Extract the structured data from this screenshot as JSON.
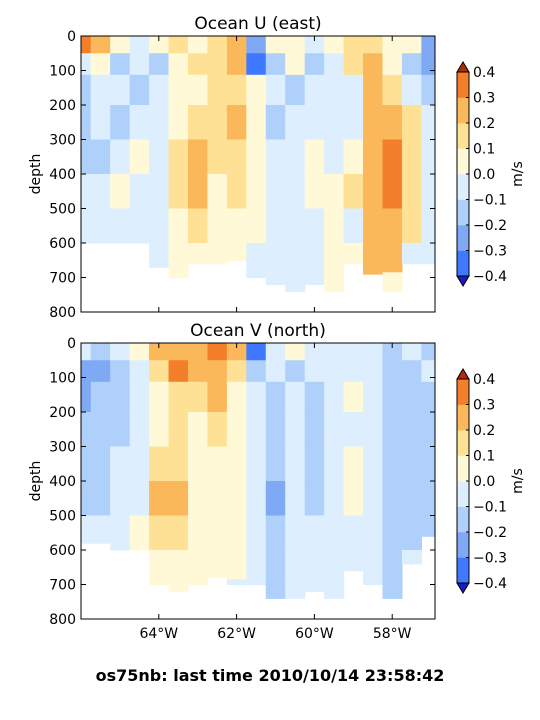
{
  "footer_text": "os75nb: last time 2010/10/14 23:58:42",
  "palette": {
    "levels": [
      -0.4,
      -0.3,
      -0.2,
      -0.1,
      0.0,
      0.1,
      0.2,
      0.3,
      0.4
    ],
    "bins": [
      "#1a3cff",
      "#3f79ff",
      "#7fa8f5",
      "#aed0fb",
      "#ddefff",
      "#fff9d8",
      "#ffe196",
      "#fbb85a",
      "#f47f2a",
      "#e6500d"
    ],
    "over": "#b22a06",
    "under": "#1a1ac8"
  },
  "chart_data": [
    {
      "type": "heatmap",
      "title": "Ocean U (east)",
      "ylabel": "depth",
      "xlabel": "",
      "xlim": [
        -66.0,
        -56.9
      ],
      "ylim": [
        800,
        0
      ],
      "yticks": [
        0,
        100,
        200,
        300,
        400,
        500,
        600,
        700,
        800
      ],
      "xticks": [
        -64,
        -62,
        -60,
        -58
      ],
      "xtick_labels": [
        "64°W",
        "62°W",
        "60°W",
        "58°W"
      ],
      "show_xtick_labels": false,
      "colorbar": {
        "label": "m/s",
        "ticks": [
          -0.4,
          -0.3,
          -0.2,
          -0.1,
          0.0,
          0.1,
          0.2,
          0.3,
          0.4
        ],
        "tick_labels": [
          "−0.4",
          "−0.3",
          "−0.2",
          "−0.1",
          "0.0",
          "0.1",
          "0.2",
          "0.3",
          "0.4"
        ]
      },
      "lon": [
        -66.0,
        -65.5,
        -65.0,
        -64.5,
        -64.0,
        -63.5,
        -63.0,
        -62.5,
        -62.0,
        -61.5,
        -61.0,
        -60.5,
        -60.0,
        -59.5,
        -59.0,
        -58.5,
        -58.0,
        -57.5,
        -57.0
      ],
      "depth_max": [
        600,
        600,
        600,
        600,
        670,
        700,
        660,
        660,
        650,
        700,
        720,
        740,
        720,
        740,
        660,
        690,
        740,
        660,
        660
      ],
      "depth": [
        25,
        75,
        150,
        250,
        350,
        450,
        550,
        650,
        720
      ],
      "values": [
        [
          0.35,
          0.2,
          0.05,
          -0.05,
          0.05,
          0.1,
          0.05,
          0.15,
          0.25,
          -0.3,
          0.05,
          0.05,
          -0.05,
          0.05,
          0.15,
          0.15,
          0.05,
          0.05,
          -0.3
        ],
        [
          -0.05,
          0.05,
          -0.15,
          -0.05,
          -0.15,
          0.05,
          0.1,
          0.15,
          0.2,
          -0.35,
          -0.15,
          0.05,
          -0.15,
          -0.1,
          0.15,
          0.2,
          0.05,
          -0.15,
          -0.25
        ],
        [
          -0.15,
          -0.05,
          -0.05,
          -0.15,
          -0.05,
          0.05,
          0.05,
          0.15,
          0.15,
          0.05,
          -0.05,
          -0.15,
          -0.05,
          -0.05,
          -0.05,
          0.2,
          0.15,
          -0.05,
          -0.15
        ],
        [
          -0.15,
          -0.05,
          -0.15,
          -0.05,
          -0.05,
          0.05,
          0.15,
          0.15,
          0.2,
          0.05,
          -0.15,
          -0.05,
          -0.05,
          -0.05,
          -0.05,
          0.25,
          0.25,
          0.15,
          -0.05
        ],
        [
          -0.15,
          -0.15,
          -0.05,
          0.05,
          -0.05,
          0.15,
          0.2,
          0.1,
          0.15,
          0.05,
          -0.05,
          -0.05,
          0.05,
          -0.05,
          0.05,
          0.25,
          0.3,
          0.15,
          -0.05
        ],
        [
          -0.05,
          -0.05,
          0.05,
          -0.05,
          -0.05,
          0.15,
          0.2,
          0.05,
          0.15,
          0.05,
          -0.05,
          -0.05,
          0.05,
          0.05,
          0.15,
          0.25,
          0.3,
          0.15,
          -0.05
        ],
        [
          -0.05,
          -0.05,
          -0.05,
          -0.05,
          -0.05,
          0.05,
          0.15,
          0.05,
          0.05,
          0.05,
          -0.05,
          -0.05,
          -0.05,
          0.05,
          -0.05,
          0.25,
          0.25,
          0.1,
          -0.05
        ],
        [
          -0.05,
          -0.05,
          -0.05,
          -0.05,
          -0.05,
          0.05,
          0.05,
          0.05,
          0.05,
          -0.05,
          -0.05,
          -0.05,
          -0.05,
          0.05,
          0.05,
          0.25,
          0.2,
          -0.05,
          -0.05
        ],
        [
          -0.05,
          -0.05,
          -0.05,
          -0.05,
          -0.05,
          0.05,
          0.05,
          0.05,
          0.05,
          -0.05,
          -0.05,
          -0.05,
          -0.05,
          0.05,
          0.05,
          0.25,
          0.05,
          -0.05,
          -0.05
        ]
      ]
    },
    {
      "type": "heatmap",
      "title": "Ocean V (north)",
      "ylabel": "depth",
      "xlabel": "",
      "xlim": [
        -66.0,
        -56.9
      ],
      "ylim": [
        800,
        0
      ],
      "yticks": [
        0,
        100,
        200,
        300,
        400,
        500,
        600,
        700,
        800
      ],
      "xticks": [
        -64,
        -62,
        -60,
        -58
      ],
      "xtick_labels": [
        "64°W",
        "62°W",
        "60°W",
        "58°W"
      ],
      "show_xtick_labels": true,
      "colorbar": {
        "label": "m/s",
        "ticks": [
          -0.4,
          -0.3,
          -0.2,
          -0.1,
          0.0,
          0.1,
          0.2,
          0.3,
          0.4
        ],
        "tick_labels": [
          "−0.4",
          "−0.3",
          "−0.2",
          "−0.1",
          "0.0",
          "0.1",
          "0.2",
          "0.3",
          "0.4"
        ]
      },
      "lon": [
        -66.0,
        -65.5,
        -65.0,
        -64.5,
        -64.0,
        -63.5,
        -63.0,
        -62.5,
        -62.0,
        -61.5,
        -61.0,
        -60.5,
        -60.0,
        -59.5,
        -59.0,
        -58.5,
        -58.0,
        -57.5,
        -57.0
      ],
      "depth_max": [
        580,
        580,
        600,
        600,
        700,
        720,
        700,
        680,
        700,
        700,
        740,
        740,
        720,
        740,
        660,
        700,
        740,
        640,
        560
      ],
      "depth": [
        25,
        75,
        150,
        250,
        350,
        450,
        550,
        650,
        720
      ],
      "values": [
        [
          -0.05,
          -0.15,
          -0.05,
          0.05,
          0.25,
          0.25,
          0.25,
          0.3,
          0.2,
          -0.35,
          -0.05,
          0.05,
          -0.05,
          -0.05,
          -0.05,
          -0.05,
          -0.15,
          -0.05,
          -0.15
        ],
        [
          -0.25,
          -0.25,
          -0.15,
          -0.05,
          0.15,
          0.3,
          0.25,
          0.2,
          0.1,
          -0.15,
          -0.05,
          -0.15,
          -0.05,
          -0.05,
          -0.05,
          -0.05,
          -0.15,
          -0.15,
          -0.05
        ],
        [
          -0.25,
          -0.2,
          -0.15,
          -0.05,
          0.05,
          0.15,
          0.15,
          0.2,
          0.05,
          -0.05,
          -0.15,
          -0.05,
          -0.15,
          -0.05,
          0.05,
          -0.05,
          -0.15,
          -0.15,
          -0.15
        ],
        [
          -0.2,
          -0.15,
          -0.15,
          -0.05,
          0.05,
          0.15,
          0.05,
          0.1,
          0.05,
          -0.05,
          -0.15,
          -0.05,
          -0.15,
          -0.05,
          -0.05,
          -0.05,
          -0.15,
          -0.15,
          -0.15
        ],
        [
          -0.15,
          -0.15,
          -0.05,
          -0.05,
          0.15,
          0.15,
          0.05,
          0.05,
          0.05,
          -0.05,
          -0.15,
          -0.05,
          -0.15,
          -0.05,
          0.05,
          -0.05,
          -0.15,
          -0.15,
          -0.15
        ],
        [
          -0.15,
          -0.15,
          -0.05,
          -0.05,
          0.2,
          0.2,
          0.05,
          0.05,
          0.05,
          -0.05,
          -0.25,
          -0.05,
          -0.15,
          -0.05,
          0.05,
          -0.05,
          -0.2,
          -0.15,
          -0.15
        ],
        [
          -0.05,
          -0.05,
          -0.05,
          0.05,
          0.15,
          0.1,
          0.05,
          0.05,
          0.05,
          -0.05,
          -0.15,
          -0.05,
          -0.05,
          -0.05,
          -0.05,
          -0.05,
          -0.15,
          -0.15,
          -0.15
        ],
        [
          -0.05,
          -0.05,
          -0.05,
          -0.05,
          0.05,
          0.05,
          0.05,
          0.05,
          0.05,
          -0.05,
          -0.15,
          -0.05,
          -0.05,
          -0.05,
          -0.05,
          -0.05,
          -0.15,
          -0.05,
          -0.05
        ],
        [
          -0.05,
          -0.05,
          -0.05,
          -0.05,
          0.05,
          0.05,
          0.05,
          -0.05,
          -0.05,
          -0.05,
          -0.15,
          -0.05,
          -0.05,
          -0.05,
          -0.05,
          -0.05,
          -0.15,
          -0.05,
          -0.05
        ]
      ]
    }
  ]
}
